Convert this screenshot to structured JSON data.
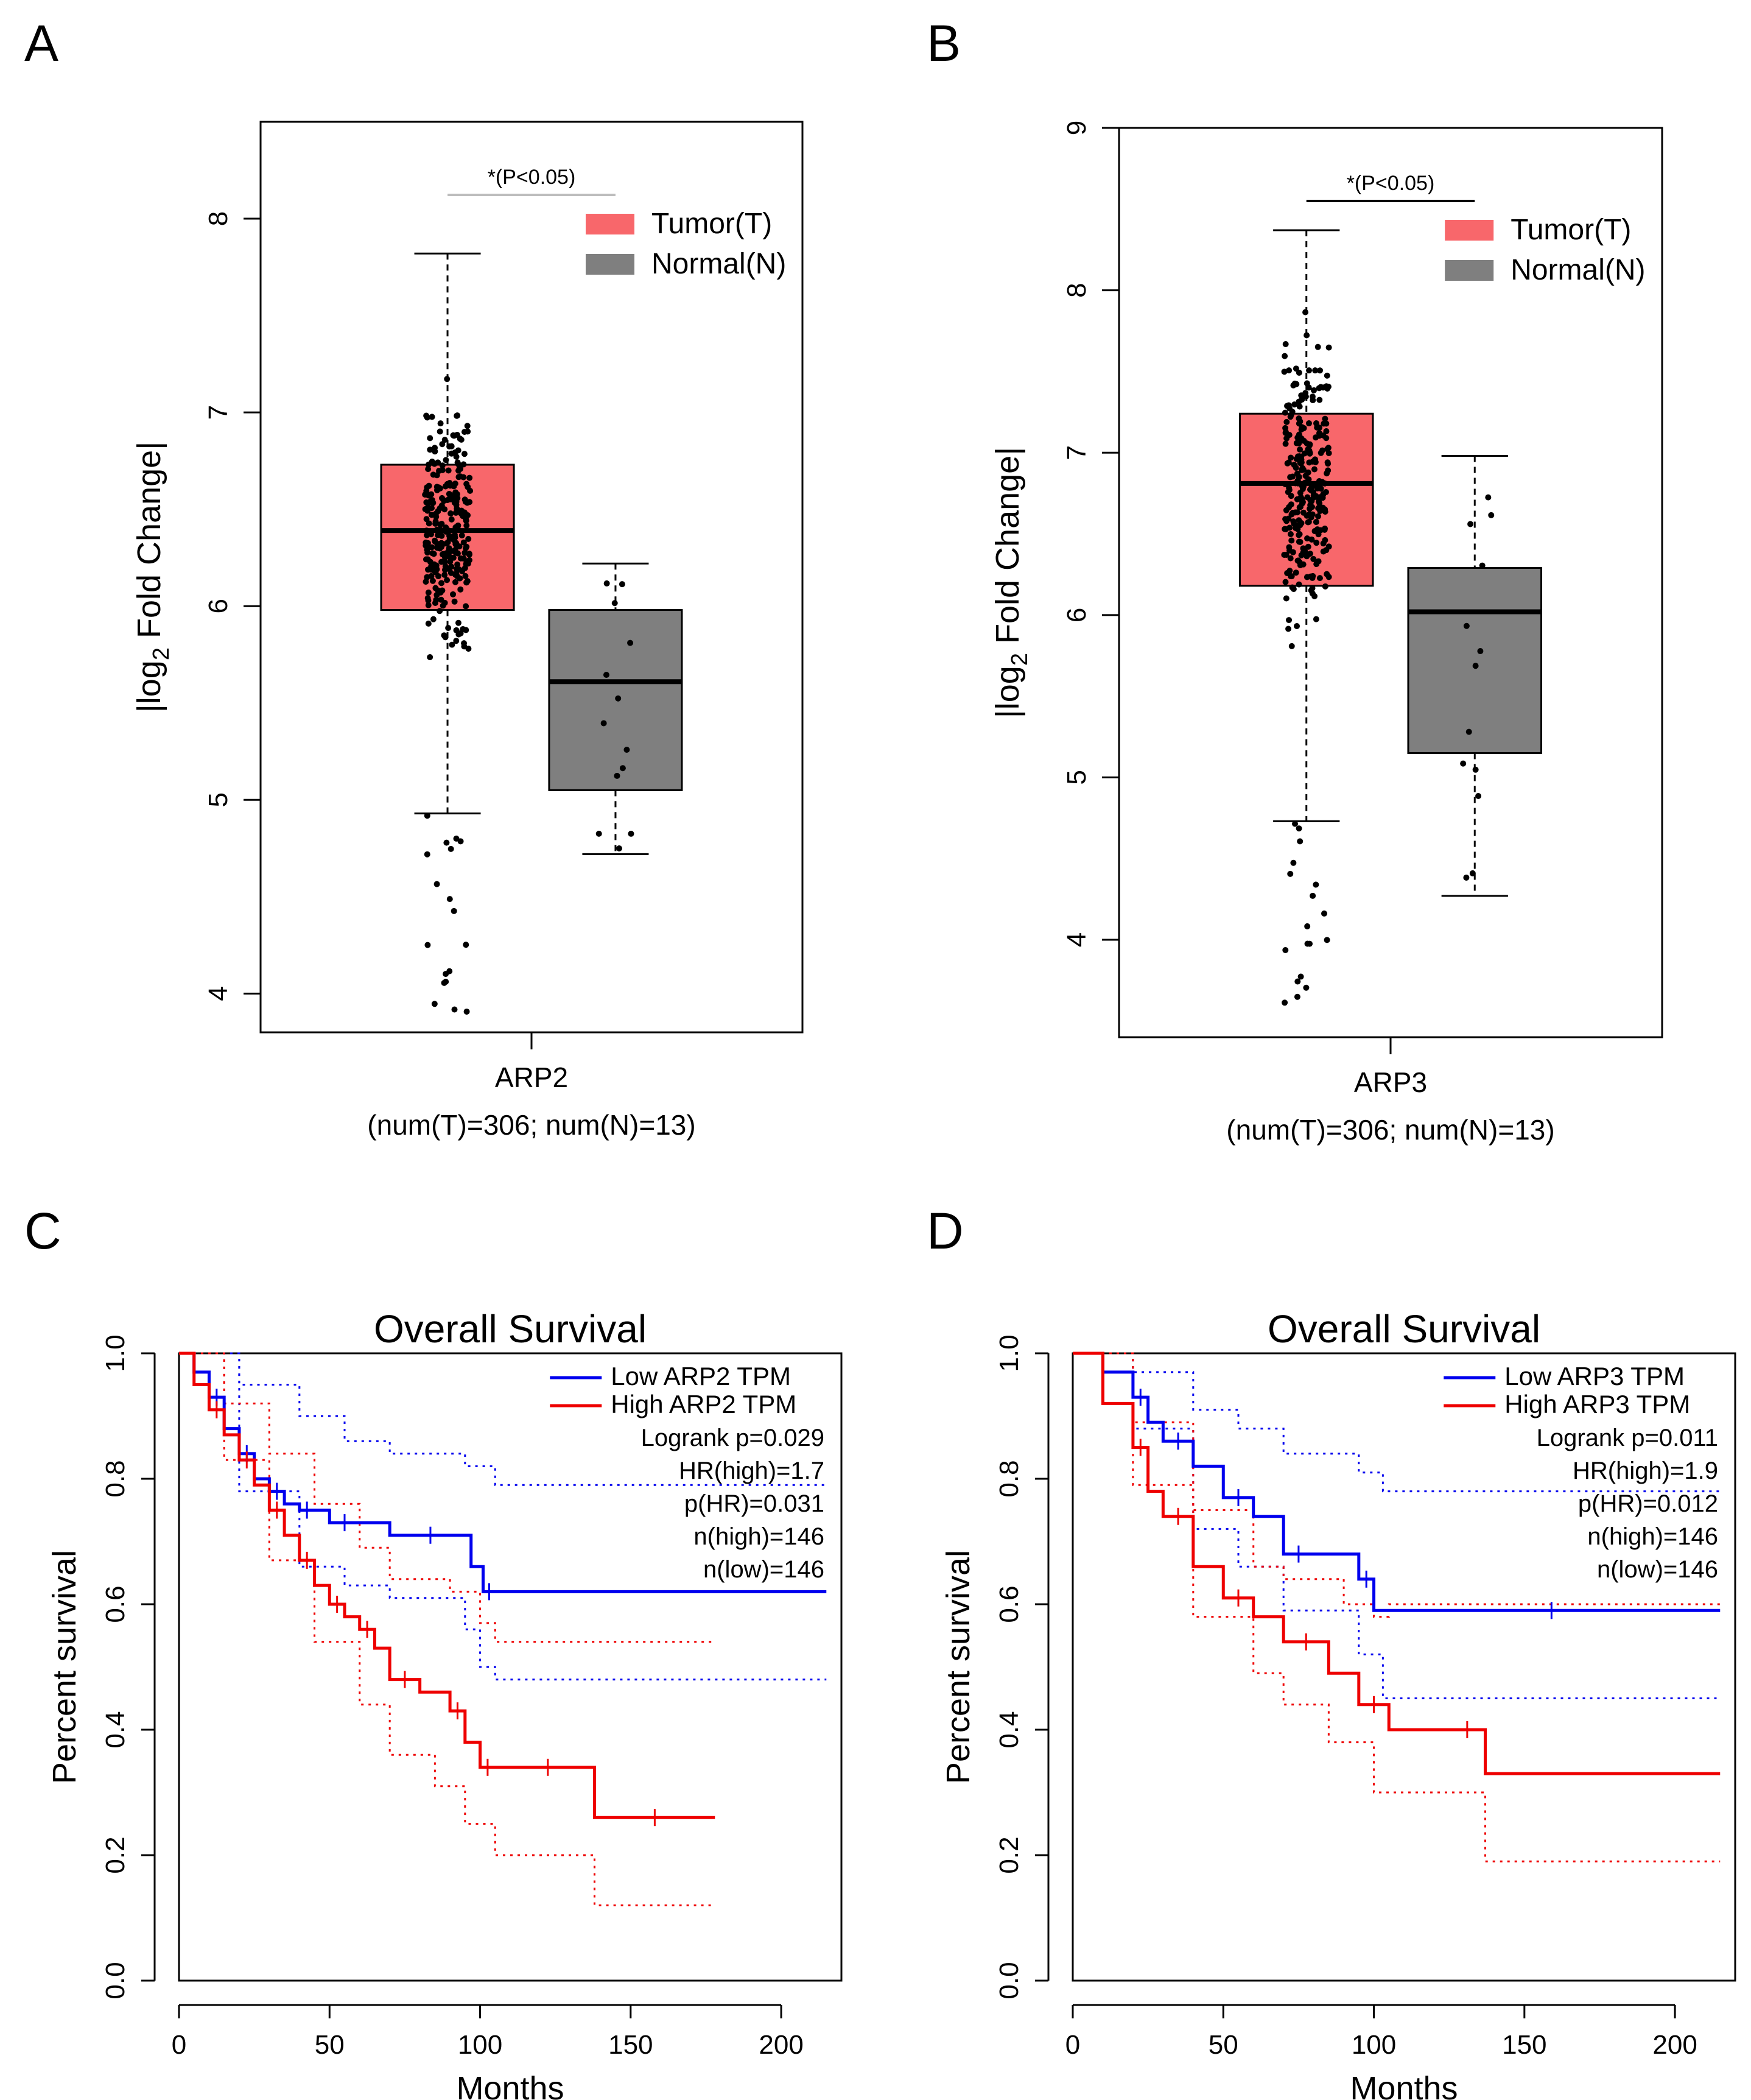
{
  "chart_data": [
    {
      "panel": "A",
      "type": "box",
      "ylabel": "|log2 Fold Change|",
      "ylabel_parts": [
        "|log",
        "2",
        " Fold Change|"
      ],
      "xlabel": "ARP2",
      "sample_note": "(num(T)=306; num(N)=13)",
      "significance": "*(P<0.05)",
      "ylim": [
        3.8,
        8.5
      ],
      "yticks": [
        4,
        5,
        6,
        7,
        8
      ],
      "legend": [
        "Tumor(T)",
        "Normal(N)"
      ],
      "colors": {
        "tumor": "#f8676b",
        "normal": "#7f7f7f"
      },
      "boxes": [
        {
          "group": "Tumor(T)",
          "q1": 5.98,
          "median": 6.39,
          "q3": 6.73,
          "whisker_low": 4.93,
          "whisker_high": 7.82
        },
        {
          "group": "Normal(N)",
          "q1": 5.05,
          "median": 5.61,
          "q3": 5.98,
          "whisker_low": 4.72,
          "whisker_high": 6.22
        }
      ]
    },
    {
      "panel": "B",
      "type": "box",
      "ylabel": "|log2 Fold Change|",
      "ylabel_parts": [
        "|log",
        "2",
        " Fold Change|"
      ],
      "xlabel": "ARP3",
      "sample_note": "(num(T)=306; num(N)=13)",
      "significance": "*(P<0.05)",
      "ylim": [
        3.4,
        9.0
      ],
      "yticks": [
        4,
        5,
        6,
        7,
        8,
        9
      ],
      "legend": [
        "Tumor(T)",
        "Normal(N)"
      ],
      "colors": {
        "tumor": "#f8676b",
        "normal": "#7f7f7f"
      },
      "boxes": [
        {
          "group": "Tumor(T)",
          "q1": 6.18,
          "median": 6.81,
          "q3": 7.24,
          "whisker_low": 4.73,
          "whisker_high": 8.37
        },
        {
          "group": "Normal(N)",
          "q1": 5.15,
          "median": 6.02,
          "q3": 6.29,
          "whisker_low": 4.27,
          "whisker_high": 6.98
        }
      ]
    },
    {
      "panel": "C",
      "type": "line",
      "title": "Overall Survival",
      "xlabel": "Months",
      "ylabel": "Percent survival",
      "xlim": [
        0,
        220
      ],
      "ylim": [
        0,
        1
      ],
      "xticks": [
        0,
        50,
        100,
        150,
        200
      ],
      "yticks": [
        "0.0",
        "0.2",
        "0.4",
        "0.6",
        "0.8",
        "1.0"
      ],
      "legend": [
        "Low  ARP2 TPM",
        "High ARP2 TPM"
      ],
      "stats": [
        "Logrank p=0.029",
        "HR(high)=1.7",
        "p(HR)=0.031",
        "n(high)=146",
        "n(low)=146"
      ],
      "colors": {
        "low": "#0000ee",
        "high": "#ee0000"
      },
      "series": [
        {
          "name": "Low ARP2 TPM",
          "x": [
            0,
            5,
            10,
            15,
            20,
            25,
            30,
            35,
            40,
            45,
            50,
            60,
            70,
            97,
            101,
            105,
            215
          ],
          "y": [
            1.0,
            0.97,
            0.93,
            0.88,
            0.84,
            0.8,
            0.78,
            0.76,
            0.75,
            0.75,
            0.73,
            0.73,
            0.71,
            0.66,
            0.62,
            0.62,
            0.62
          ]
        },
        {
          "name": "High ARP2 TPM",
          "x": [
            0,
            5,
            10,
            15,
            20,
            25,
            30,
            35,
            40,
            45,
            50,
            55,
            60,
            65,
            70,
            80,
            90,
            95,
            100,
            105,
            115,
            130,
            138,
            178
          ],
          "y": [
            1.0,
            0.95,
            0.91,
            0.87,
            0.83,
            0.79,
            0.75,
            0.71,
            0.67,
            0.63,
            0.6,
            0.58,
            0.56,
            0.53,
            0.48,
            0.46,
            0.43,
            0.38,
            0.34,
            0.34,
            0.34,
            0.34,
            0.26,
            0.26
          ]
        },
        {
          "name": "Low CI upper",
          "x": [
            0,
            20,
            40,
            55,
            70,
            95,
            105,
            215
          ],
          "y": [
            1.0,
            0.95,
            0.9,
            0.86,
            0.84,
            0.82,
            0.79,
            0.79
          ]
        },
        {
          "name": "Low CI lower",
          "x": [
            0,
            20,
            40,
            55,
            70,
            95,
            100,
            105,
            215
          ],
          "y": [
            1.0,
            0.78,
            0.66,
            0.63,
            0.61,
            0.56,
            0.5,
            0.48,
            0.48
          ]
        },
        {
          "name": "High CI upper",
          "x": [
            0,
            15,
            30,
            45,
            60,
            70,
            90,
            100,
            105,
            178
          ],
          "y": [
            1.0,
            0.92,
            0.84,
            0.76,
            0.69,
            0.64,
            0.62,
            0.57,
            0.54,
            0.54
          ]
        },
        {
          "name": "High CI lower",
          "x": [
            0,
            15,
            30,
            45,
            60,
            70,
            85,
            95,
            105,
            130,
            138,
            178
          ],
          "y": [
            1.0,
            0.83,
            0.67,
            0.54,
            0.44,
            0.36,
            0.31,
            0.25,
            0.2,
            0.2,
            0.12,
            0.12
          ]
        }
      ]
    },
    {
      "panel": "D",
      "type": "line",
      "title": "Overall Survival",
      "xlabel": "Months",
      "ylabel": "Percent survival",
      "xlim": [
        0,
        220
      ],
      "ylim": [
        0,
        1
      ],
      "xticks": [
        0,
        50,
        100,
        150,
        200
      ],
      "yticks": [
        "0.0",
        "0.2",
        "0.4",
        "0.6",
        "0.8",
        "1.0"
      ],
      "legend": [
        "Low  ARP3 TPM",
        "High ARP3 TPM"
      ],
      "stats": [
        "Logrank p=0.011",
        "HR(high)=1.9",
        "p(HR)=0.012",
        "n(high)=146",
        "n(low)=146"
      ],
      "colors": {
        "low": "#0000ee",
        "high": "#ee0000"
      },
      "series": [
        {
          "name": "Low ARP3 TPM",
          "x": [
            0,
            10,
            20,
            25,
            30,
            40,
            50,
            60,
            70,
            80,
            95,
            100,
            103,
            215
          ],
          "y": [
            1.0,
            0.97,
            0.93,
            0.89,
            0.86,
            0.82,
            0.77,
            0.74,
            0.68,
            0.68,
            0.64,
            0.59,
            0.59,
            0.59
          ]
        },
        {
          "name": "High ARP3 TPM",
          "x": [
            0,
            10,
            20,
            25,
            30,
            40,
            50,
            60,
            70,
            85,
            95,
            105,
            125,
            137,
            215
          ],
          "y": [
            1.0,
            0.92,
            0.85,
            0.78,
            0.74,
            0.66,
            0.61,
            0.58,
            0.54,
            0.49,
            0.44,
            0.4,
            0.4,
            0.33,
            0.33
          ]
        },
        {
          "name": "Low CI upper",
          "x": [
            0,
            20,
            40,
            55,
            70,
            95,
            103,
            215
          ],
          "y": [
            1.0,
            0.97,
            0.91,
            0.88,
            0.84,
            0.81,
            0.78,
            0.78
          ]
        },
        {
          "name": "Low CI lower",
          "x": [
            0,
            20,
            40,
            55,
            70,
            95,
            103,
            215
          ],
          "y": [
            1.0,
            0.88,
            0.72,
            0.66,
            0.59,
            0.52,
            0.45,
            0.45
          ]
        },
        {
          "name": "High CI upper",
          "x": [
            0,
            20,
            40,
            60,
            70,
            90,
            100,
            105,
            215
          ],
          "y": [
            1.0,
            0.89,
            0.75,
            0.66,
            0.64,
            0.6,
            0.58,
            0.6,
            0.6
          ]
        },
        {
          "name": "High CI lower",
          "x": [
            0,
            20,
            40,
            60,
            70,
            85,
            100,
            137,
            215
          ],
          "y": [
            1.0,
            0.79,
            0.58,
            0.49,
            0.44,
            0.38,
            0.3,
            0.19,
            0.19
          ]
        }
      ]
    }
  ],
  "panel_labels": [
    "A",
    "B",
    "C",
    "D"
  ]
}
